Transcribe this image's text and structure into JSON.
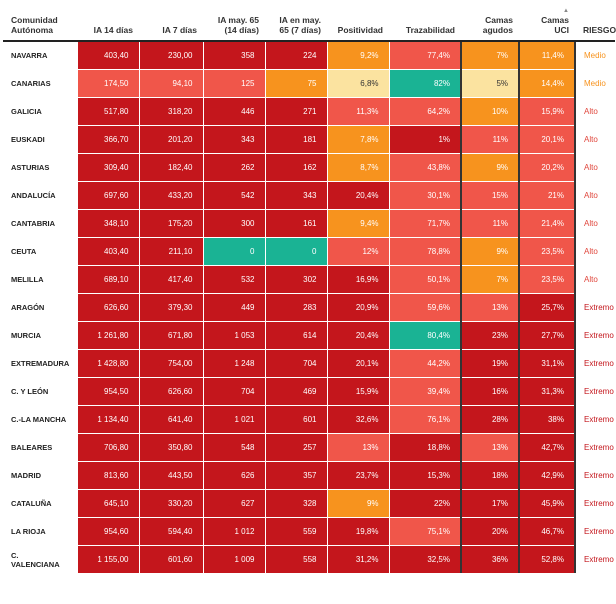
{
  "colors": {
    "dark_red": "#c4161c",
    "red": "#e0463c",
    "salmon": "#f0564a",
    "orange": "#f7931e",
    "light_yellow": "#fbe3a0",
    "teal": "#1ab394",
    "risk_medio": "#f7931e",
    "risk_alto": "#e0463c",
    "risk_extremo": "#c4161c"
  },
  "headers": {
    "community": "Comunidad Autónoma",
    "ia14": "IA 14 días",
    "ia7": "IA 7 días",
    "ia65_14": "IA may. 65 (14 días)",
    "ia65_7": "IA en may. 65 (7 días)",
    "positividad": "Positividad",
    "trazabilidad": "Trazabilidad",
    "camas_agudos": "Camas agudos",
    "camas_uci": "Camas UCI",
    "riesgo": "RIESGO",
    "sort_arrow": "▲"
  },
  "rows": [
    {
      "name": "NAVARRA",
      "cells": [
        {
          "v": "403,40",
          "c": "dark_red"
        },
        {
          "v": "230,00",
          "c": "dark_red"
        },
        {
          "v": "358",
          "c": "dark_red"
        },
        {
          "v": "224",
          "c": "dark_red"
        },
        {
          "v": "9,2%",
          "c": "orange"
        },
        {
          "v": "77,4%",
          "c": "salmon"
        },
        {
          "v": "7%",
          "c": "orange"
        },
        {
          "v": "11,4%",
          "c": "orange"
        }
      ],
      "risk": "Medio",
      "risk_color": "risk_medio"
    },
    {
      "name": "CANARIAS",
      "cells": [
        {
          "v": "174,50",
          "c": "salmon"
        },
        {
          "v": "94,10",
          "c": "salmon"
        },
        {
          "v": "125",
          "c": "salmon"
        },
        {
          "v": "75",
          "c": "orange"
        },
        {
          "v": "6,8%",
          "c": "light_yellow"
        },
        {
          "v": "82%",
          "c": "teal"
        },
        {
          "v": "5%",
          "c": "light_yellow"
        },
        {
          "v": "14,4%",
          "c": "orange"
        }
      ],
      "risk": "Medio",
      "risk_color": "risk_medio"
    },
    {
      "name": "GALICIA",
      "cells": [
        {
          "v": "517,80",
          "c": "dark_red"
        },
        {
          "v": "318,20",
          "c": "dark_red"
        },
        {
          "v": "446",
          "c": "dark_red"
        },
        {
          "v": "271",
          "c": "dark_red"
        },
        {
          "v": "11,3%",
          "c": "salmon"
        },
        {
          "v": "64,2%",
          "c": "salmon"
        },
        {
          "v": "10%",
          "c": "orange"
        },
        {
          "v": "15,9%",
          "c": "salmon"
        }
      ],
      "risk": "Alto",
      "risk_color": "risk_alto"
    },
    {
      "name": "EUSKADI",
      "cells": [
        {
          "v": "366,70",
          "c": "dark_red"
        },
        {
          "v": "201,20",
          "c": "dark_red"
        },
        {
          "v": "343",
          "c": "dark_red"
        },
        {
          "v": "181",
          "c": "dark_red"
        },
        {
          "v": "7,8%",
          "c": "orange"
        },
        {
          "v": "1%",
          "c": "dark_red"
        },
        {
          "v": "11%",
          "c": "salmon"
        },
        {
          "v": "20,1%",
          "c": "salmon"
        }
      ],
      "risk": "Alto",
      "risk_color": "risk_alto"
    },
    {
      "name": "ASTURIAS",
      "cells": [
        {
          "v": "309,40",
          "c": "dark_red"
        },
        {
          "v": "182,40",
          "c": "dark_red"
        },
        {
          "v": "262",
          "c": "dark_red"
        },
        {
          "v": "162",
          "c": "dark_red"
        },
        {
          "v": "8,7%",
          "c": "orange"
        },
        {
          "v": "43,8%",
          "c": "salmon"
        },
        {
          "v": "9%",
          "c": "orange"
        },
        {
          "v": "20,2%",
          "c": "salmon"
        }
      ],
      "risk": "Alto",
      "risk_color": "risk_alto"
    },
    {
      "name": "ANDALUCÍA",
      "cells": [
        {
          "v": "697,60",
          "c": "dark_red"
        },
        {
          "v": "433,20",
          "c": "dark_red"
        },
        {
          "v": "542",
          "c": "dark_red"
        },
        {
          "v": "343",
          "c": "dark_red"
        },
        {
          "v": "20,4%",
          "c": "dark_red"
        },
        {
          "v": "30,1%",
          "c": "salmon"
        },
        {
          "v": "15%",
          "c": "salmon"
        },
        {
          "v": "21%",
          "c": "salmon"
        }
      ],
      "risk": "Alto",
      "risk_color": "risk_alto"
    },
    {
      "name": "CANTABRIA",
      "cells": [
        {
          "v": "348,10",
          "c": "dark_red"
        },
        {
          "v": "175,20",
          "c": "dark_red"
        },
        {
          "v": "300",
          "c": "dark_red"
        },
        {
          "v": "161",
          "c": "dark_red"
        },
        {
          "v": "9,4%",
          "c": "orange"
        },
        {
          "v": "71,7%",
          "c": "salmon"
        },
        {
          "v": "11%",
          "c": "salmon"
        },
        {
          "v": "21,4%",
          "c": "salmon"
        }
      ],
      "risk": "Alto",
      "risk_color": "risk_alto"
    },
    {
      "name": "CEUTA",
      "cells": [
        {
          "v": "403,40",
          "c": "dark_red"
        },
        {
          "v": "211,10",
          "c": "dark_red"
        },
        {
          "v": "0",
          "c": "teal"
        },
        {
          "v": "0",
          "c": "teal"
        },
        {
          "v": "12%",
          "c": "salmon"
        },
        {
          "v": "78,8%",
          "c": "salmon"
        },
        {
          "v": "9%",
          "c": "orange"
        },
        {
          "v": "23,5%",
          "c": "salmon"
        }
      ],
      "risk": "Alto",
      "risk_color": "risk_alto"
    },
    {
      "name": "MELILLA",
      "cells": [
        {
          "v": "689,10",
          "c": "dark_red"
        },
        {
          "v": "417,40",
          "c": "dark_red"
        },
        {
          "v": "532",
          "c": "dark_red"
        },
        {
          "v": "302",
          "c": "dark_red"
        },
        {
          "v": "16,9%",
          "c": "dark_red"
        },
        {
          "v": "50,1%",
          "c": "salmon"
        },
        {
          "v": "7%",
          "c": "orange"
        },
        {
          "v": "23,5%",
          "c": "salmon"
        }
      ],
      "risk": "Alto",
      "risk_color": "risk_alto"
    },
    {
      "name": "ARAGÓN",
      "cells": [
        {
          "v": "626,60",
          "c": "dark_red"
        },
        {
          "v": "379,30",
          "c": "dark_red"
        },
        {
          "v": "449",
          "c": "dark_red"
        },
        {
          "v": "283",
          "c": "dark_red"
        },
        {
          "v": "20,9%",
          "c": "dark_red"
        },
        {
          "v": "59,6%",
          "c": "salmon"
        },
        {
          "v": "13%",
          "c": "salmon"
        },
        {
          "v": "25,7%",
          "c": "dark_red"
        }
      ],
      "risk": "Extremo",
      "risk_color": "risk_extremo"
    },
    {
      "name": "MURCIA",
      "cells": [
        {
          "v": "1 261,80",
          "c": "dark_red"
        },
        {
          "v": "671,80",
          "c": "dark_red"
        },
        {
          "v": "1 053",
          "c": "dark_red"
        },
        {
          "v": "614",
          "c": "dark_red"
        },
        {
          "v": "20,4%",
          "c": "dark_red"
        },
        {
          "v": "80,4%",
          "c": "teal"
        },
        {
          "v": "23%",
          "c": "dark_red"
        },
        {
          "v": "27,7%",
          "c": "dark_red"
        }
      ],
      "risk": "Extremo",
      "risk_color": "risk_extremo"
    },
    {
      "name": "EXTREMADURA",
      "cells": [
        {
          "v": "1 428,80",
          "c": "dark_red"
        },
        {
          "v": "754,00",
          "c": "dark_red"
        },
        {
          "v": "1 248",
          "c": "dark_red"
        },
        {
          "v": "704",
          "c": "dark_red"
        },
        {
          "v": "20,1%",
          "c": "dark_red"
        },
        {
          "v": "44,2%",
          "c": "salmon"
        },
        {
          "v": "19%",
          "c": "dark_red"
        },
        {
          "v": "31,1%",
          "c": "dark_red"
        }
      ],
      "risk": "Extremo",
      "risk_color": "risk_extremo"
    },
    {
      "name": "C. Y LEÓN",
      "cells": [
        {
          "v": "954,50",
          "c": "dark_red"
        },
        {
          "v": "626,60",
          "c": "dark_red"
        },
        {
          "v": "704",
          "c": "dark_red"
        },
        {
          "v": "469",
          "c": "dark_red"
        },
        {
          "v": "15,9%",
          "c": "dark_red"
        },
        {
          "v": "39,4%",
          "c": "salmon"
        },
        {
          "v": "16%",
          "c": "dark_red"
        },
        {
          "v": "31,3%",
          "c": "dark_red"
        }
      ],
      "risk": "Extremo",
      "risk_color": "risk_extremo"
    },
    {
      "name": "C.-LA MANCHA",
      "cells": [
        {
          "v": "1 134,40",
          "c": "dark_red"
        },
        {
          "v": "641,40",
          "c": "dark_red"
        },
        {
          "v": "1 021",
          "c": "dark_red"
        },
        {
          "v": "601",
          "c": "dark_red"
        },
        {
          "v": "32,6%",
          "c": "dark_red"
        },
        {
          "v": "76,1%",
          "c": "salmon"
        },
        {
          "v": "28%",
          "c": "dark_red"
        },
        {
          "v": "38%",
          "c": "dark_red"
        }
      ],
      "risk": "Extremo",
      "risk_color": "risk_extremo"
    },
    {
      "name": "BALEARES",
      "cells": [
        {
          "v": "706,80",
          "c": "dark_red"
        },
        {
          "v": "350,80",
          "c": "dark_red"
        },
        {
          "v": "548",
          "c": "dark_red"
        },
        {
          "v": "257",
          "c": "dark_red"
        },
        {
          "v": "13%",
          "c": "salmon"
        },
        {
          "v": "18,8%",
          "c": "dark_red"
        },
        {
          "v": "13%",
          "c": "salmon"
        },
        {
          "v": "42,7%",
          "c": "dark_red"
        }
      ],
      "risk": "Extremo",
      "risk_color": "risk_extremo"
    },
    {
      "name": "MADRID",
      "cells": [
        {
          "v": "813,60",
          "c": "dark_red"
        },
        {
          "v": "443,50",
          "c": "dark_red"
        },
        {
          "v": "626",
          "c": "dark_red"
        },
        {
          "v": "357",
          "c": "dark_red"
        },
        {
          "v": "23,7%",
          "c": "dark_red"
        },
        {
          "v": "15,3%",
          "c": "dark_red"
        },
        {
          "v": "18%",
          "c": "dark_red"
        },
        {
          "v": "42,9%",
          "c": "dark_red"
        }
      ],
      "risk": "Extremo",
      "risk_color": "risk_extremo"
    },
    {
      "name": "CATALUÑA",
      "cells": [
        {
          "v": "645,10",
          "c": "dark_red"
        },
        {
          "v": "330,20",
          "c": "dark_red"
        },
        {
          "v": "627",
          "c": "dark_red"
        },
        {
          "v": "328",
          "c": "dark_red"
        },
        {
          "v": "9%",
          "c": "orange"
        },
        {
          "v": "22%",
          "c": "dark_red"
        },
        {
          "v": "17%",
          "c": "dark_red"
        },
        {
          "v": "45,9%",
          "c": "dark_red"
        }
      ],
      "risk": "Extremo",
      "risk_color": "risk_extremo"
    },
    {
      "name": "LA RIOJA",
      "cells": [
        {
          "v": "954,60",
          "c": "dark_red"
        },
        {
          "v": "594,40",
          "c": "dark_red"
        },
        {
          "v": "1 012",
          "c": "dark_red"
        },
        {
          "v": "559",
          "c": "dark_red"
        },
        {
          "v": "19,8%",
          "c": "dark_red"
        },
        {
          "v": "75,1%",
          "c": "salmon"
        },
        {
          "v": "20%",
          "c": "dark_red"
        },
        {
          "v": "46,7%",
          "c": "dark_red"
        }
      ],
      "risk": "Extremo",
      "risk_color": "risk_extremo"
    },
    {
      "name": "C. VALENCIANA",
      "cells": [
        {
          "v": "1 155,00",
          "c": "dark_red"
        },
        {
          "v": "601,60",
          "c": "dark_red"
        },
        {
          "v": "1 009",
          "c": "dark_red"
        },
        {
          "v": "558",
          "c": "dark_red"
        },
        {
          "v": "31,2%",
          "c": "dark_red"
        },
        {
          "v": "32,5%",
          "c": "dark_red"
        },
        {
          "v": "36%",
          "c": "dark_red"
        },
        {
          "v": "52,8%",
          "c": "dark_red"
        }
      ],
      "risk": "Extremo",
      "risk_color": "risk_extremo"
    }
  ]
}
